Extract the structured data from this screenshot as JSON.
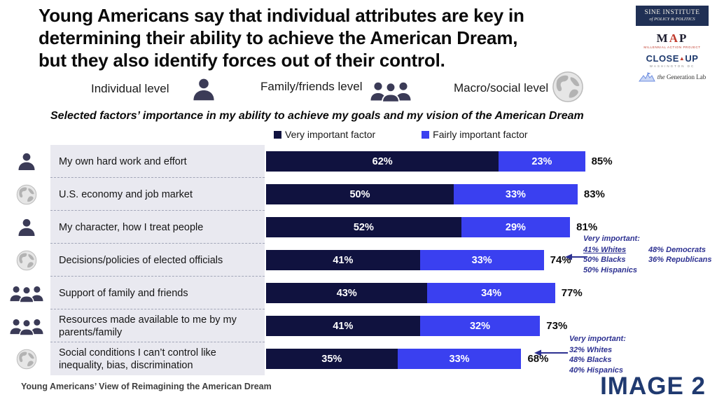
{
  "title_lines": [
    "Young Americans say that individual attributes are key in",
    "determining their ability to achieve the American Dream,",
    "but they also identify forces out of their control."
  ],
  "levels": [
    {
      "label": "Individual level",
      "icon": "individual"
    },
    {
      "label": "Family/friends level",
      "icon": "family"
    },
    {
      "label": "Macro/social level",
      "icon": "macro"
    }
  ],
  "subtitle": "Selected factors’ importance in my ability to achieve my goals and my vision of the American Dream",
  "chart_data": {
    "type": "bar",
    "stacked": true,
    "orientation": "horizontal",
    "xlim": [
      0,
      100
    ],
    "legend_position": "top",
    "categories": [
      "My own hard work and effort",
      "U.S. economy and job market",
      "My character, how I treat people",
      "Decisions/policies of elected officials",
      "Support of family and friends",
      "Resources made available to me by my parents/family",
      "Social conditions I can’t control like inequality, bias, discrimination"
    ],
    "icons": [
      "individual",
      "macro",
      "individual",
      "macro",
      "family",
      "family",
      "macro"
    ],
    "series": [
      {
        "name": "Very important factor",
        "color": "#10123f",
        "values": [
          62,
          50,
          52,
          41,
          43,
          41,
          35
        ]
      },
      {
        "name": "Fairly important factor",
        "color": "#3a40f0",
        "values": [
          23,
          33,
          29,
          33,
          34,
          32,
          33
        ]
      }
    ],
    "totals": [
      85,
      83,
      81,
      74,
      77,
      73,
      68
    ]
  },
  "annotations": {
    "elected": {
      "header": "Very important:",
      "col1": [
        "41% Whites",
        "50% Blacks",
        "50% Hispanics"
      ],
      "col2": [
        "48% Democrats",
        "36% Republicans"
      ]
    },
    "social": {
      "header": "Very important:",
      "lines": [
        "32% Whites",
        "48% Blacks",
        "40% Hispanics"
      ]
    }
  },
  "logos": {
    "sine": {
      "line1": "SINE INSTITUTE",
      "line2": "of POLICY & POLITICS"
    },
    "map": {
      "text": "MAP",
      "sub": "MILLENNIAL ACTION PROJECT"
    },
    "closeup": {
      "text": "CLOSE",
      "text2": "UP",
      "sub": "WASHINGTON DC"
    },
    "genlab": {
      "the": "the",
      "rest": " Generation Lab"
    }
  },
  "footer": "Young Americans’ View of Reimagining the American Dream",
  "image_label": "IMAGE 2",
  "colors": {
    "very_important": "#10123f",
    "fairly_important": "#3a40f0",
    "annotation": "#2d3191",
    "label_column_bg": "#e9e9f0"
  }
}
